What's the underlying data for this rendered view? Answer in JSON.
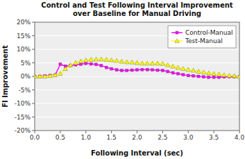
{
  "chart_data": {
    "type": "line",
    "title": "Control and Test Following Interval Improvement\nover Baseline for Manual Driving",
    "x_label": "Following Interval (sec)",
    "y_label": "FI Improvement",
    "x": [
      0.0,
      0.1,
      0.2,
      0.3,
      0.4,
      0.5,
      0.6,
      0.7,
      0.8,
      0.9,
      1.0,
      1.1,
      1.2,
      1.3,
      1.4,
      1.5,
      1.6,
      1.7,
      1.8,
      1.9,
      2.0,
      2.1,
      2.2,
      2.3,
      2.4,
      2.5,
      2.6,
      2.7,
      2.8,
      2.9,
      3.0,
      3.1,
      3.2,
      3.3,
      3.4,
      3.5,
      3.6,
      3.7,
      3.8,
      3.9,
      4.0
    ],
    "series": [
      {
        "name": "Control-Manual",
        "color": "#ff00ff",
        "marker": "square",
        "values": [
          0.0,
          0.0,
          0.002,
          0.003,
          0.005,
          0.045,
          0.038,
          0.04,
          0.043,
          0.045,
          0.048,
          0.046,
          0.044,
          0.04,
          0.033,
          0.028,
          0.024,
          0.022,
          0.022,
          0.023,
          0.024,
          0.025,
          0.025,
          0.024,
          0.023,
          0.022,
          0.018,
          0.013,
          0.01,
          0.006,
          0.003,
          0.002,
          0.0,
          -0.002,
          -0.003,
          -0.003,
          -0.003,
          -0.002,
          -0.001,
          -0.001,
          -0.001
        ]
      },
      {
        "name": "Test-Manual",
        "color": "#ffff00",
        "marker": "triangle",
        "values": [
          0.0,
          0.0,
          0.0,
          0.002,
          0.005,
          0.01,
          0.028,
          0.042,
          0.05,
          0.056,
          0.06,
          0.062,
          0.063,
          0.063,
          0.062,
          0.06,
          0.058,
          0.055,
          0.053,
          0.052,
          0.05,
          0.048,
          0.048,
          0.048,
          0.048,
          0.047,
          0.042,
          0.037,
          0.032,
          0.028,
          0.025,
          0.022,
          0.018,
          0.015,
          0.012,
          0.01,
          0.008,
          0.005,
          0.003,
          0.002,
          -0.001
        ]
      }
    ],
    "xlim": [
      0,
      4.0
    ],
    "ylim": [
      -0.2,
      0.2
    ],
    "xticks": [
      {
        "value": 0,
        "label": "0.0"
      },
      0.5,
      {
        "value": 1,
        "label": "1.0"
      },
      1.5,
      {
        "value": 2,
        "label": "2.0"
      },
      2.5,
      {
        "value": 3,
        "label": "3.0"
      },
      3.5,
      {
        "value": 4,
        "label": "4.0"
      }
    ],
    "yticks": [
      {
        "value": -0.2,
        "label": "-20%"
      },
      {
        "value": -0.15,
        "label": "-15%"
      },
      {
        "value": -0.1,
        "label": "-10%"
      },
      {
        "value": -0.05,
        "label": "-5%"
      },
      {
        "value": 0.0,
        "label": "0%"
      },
      {
        "value": 0.05,
        "label": "5%"
      },
      {
        "value": 0.1,
        "label": "10%"
      },
      {
        "value": 0.15,
        "label": "15%"
      },
      {
        "value": 0.2,
        "label": "20%"
      }
    ],
    "grid": "y",
    "legend": "upper right"
  }
}
